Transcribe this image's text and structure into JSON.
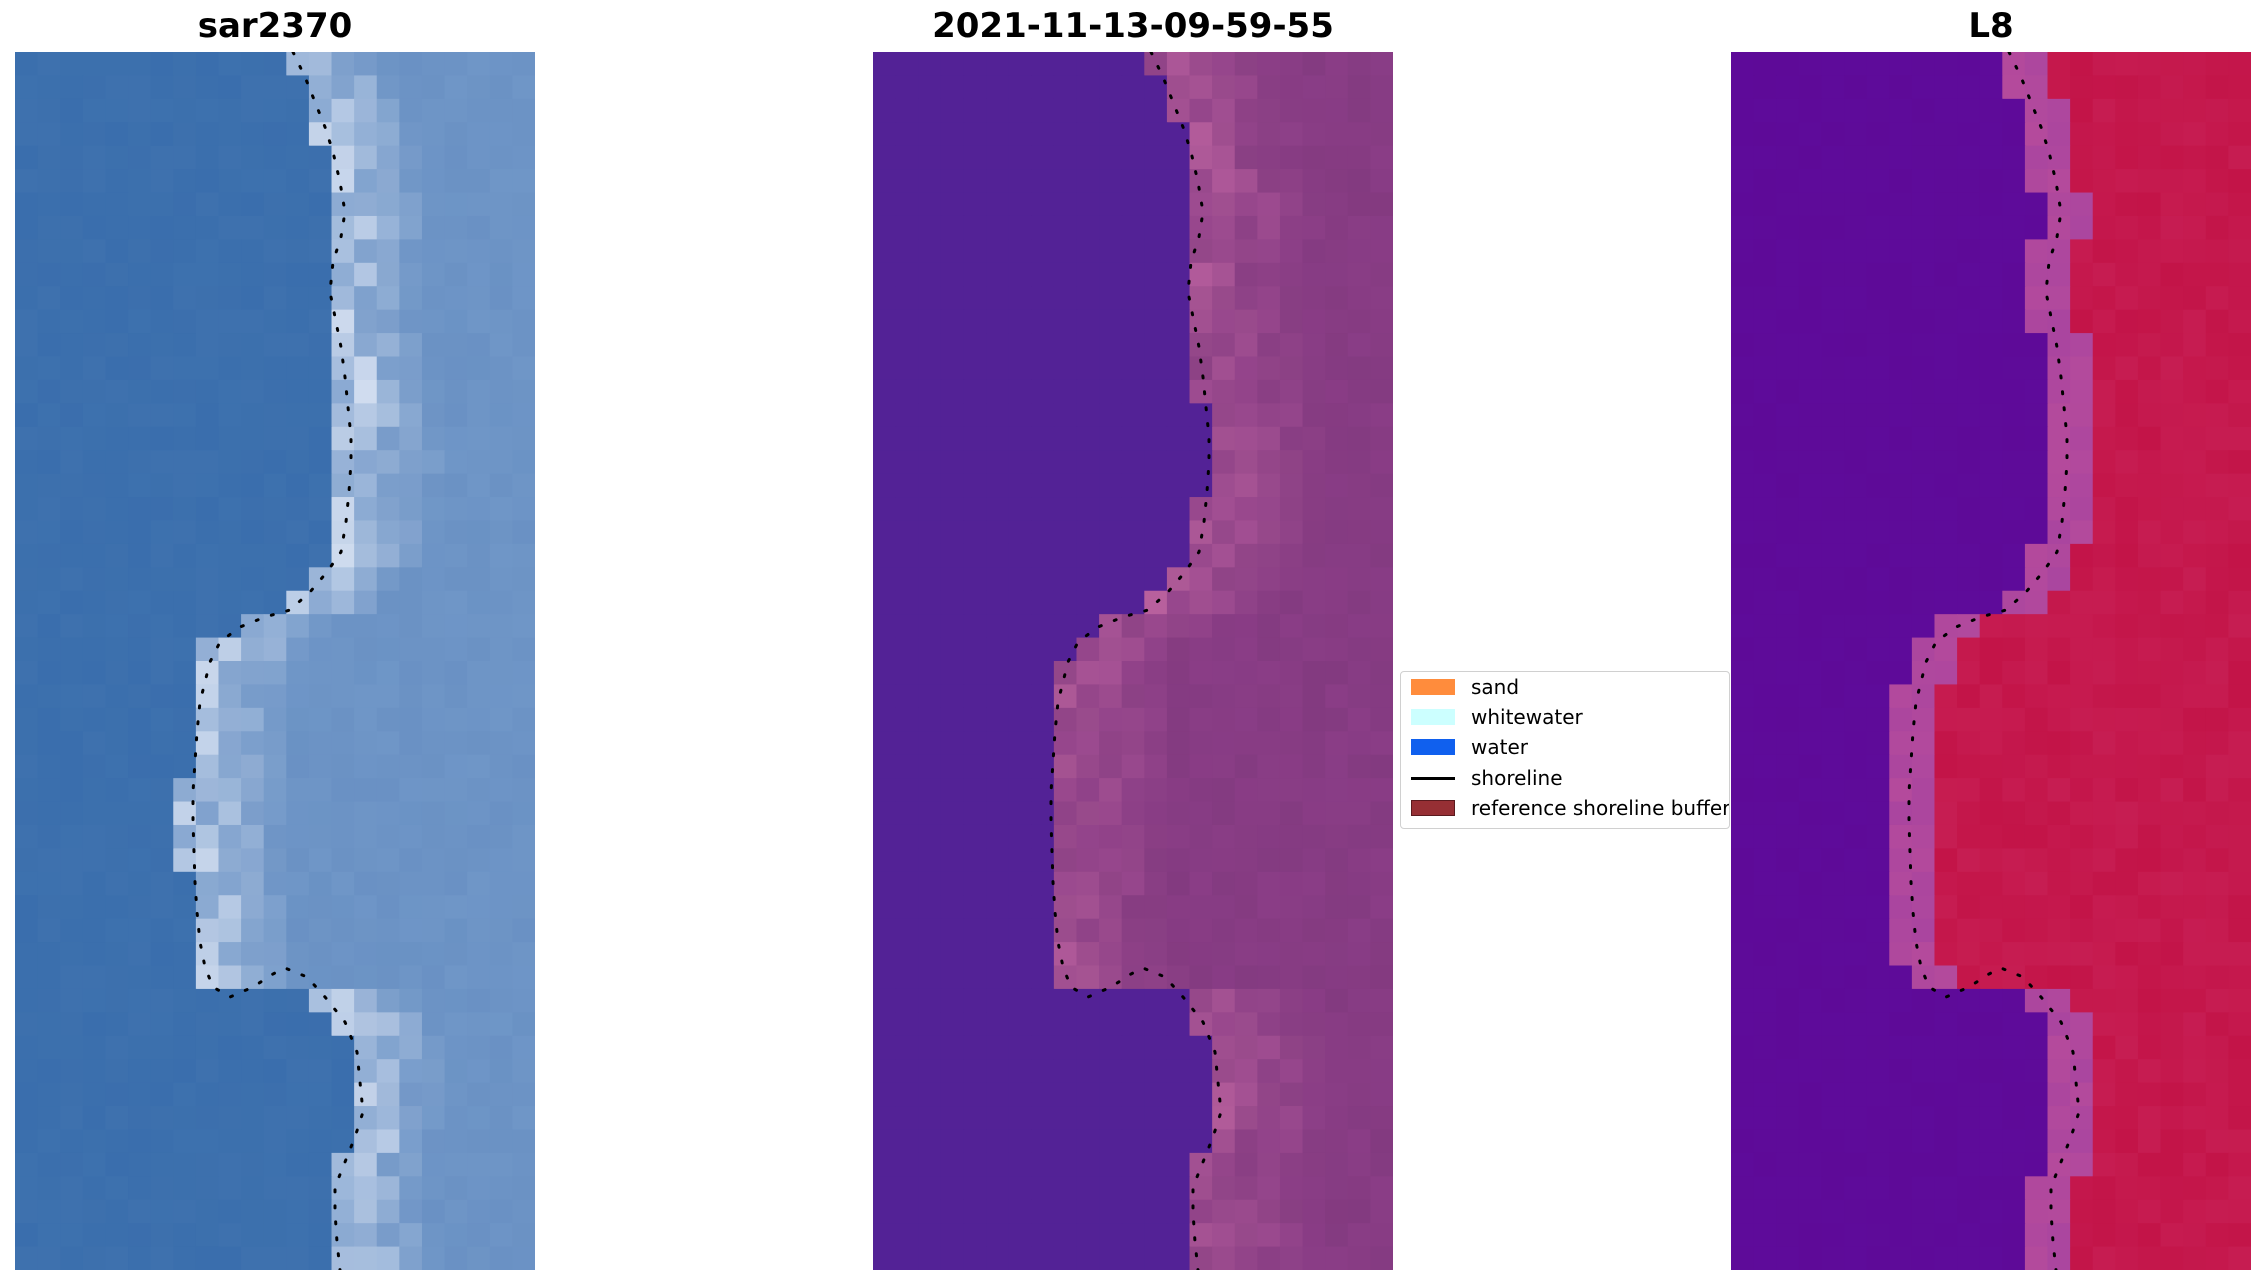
{
  "chart_data": [
    {
      "type": "heatmap",
      "title": "sar2370",
      "description_colormap": "rgb-composite",
      "colors": {
        "water": "#3a6ead",
        "land": "#6f96c7",
        "bright": "#f6f8ff"
      },
      "overlay": "shoreline"
    },
    {
      "type": "heatmap",
      "title": "2021-11-13-09-59-55",
      "description_colormap": "classified",
      "colors": {
        "water": "#532296",
        "land": "#8a3d86",
        "bright": "#c86ba6"
      },
      "overlay": "shoreline"
    },
    {
      "type": "heatmap",
      "title": "L8",
      "description_colormap": "plasma-like",
      "colors": {
        "water": "#5e0a98",
        "land": "#c31448",
        "bright": "#b44a9c"
      },
      "overlay": "shoreline"
    }
  ],
  "legend": {
    "items": [
      {
        "label": "sand",
        "color": "#ff8c3c",
        "kind": "patch"
      },
      {
        "label": "whitewater",
        "color": "#ccffff",
        "kind": "patch"
      },
      {
        "label": "water",
        "color": "#1060ee",
        "kind": "patch"
      },
      {
        "label": "shoreline",
        "color": "#000000",
        "kind": "line"
      },
      {
        "label": "reference shoreline buffer",
        "color": "#962f34",
        "kind": "patch"
      }
    ]
  }
}
